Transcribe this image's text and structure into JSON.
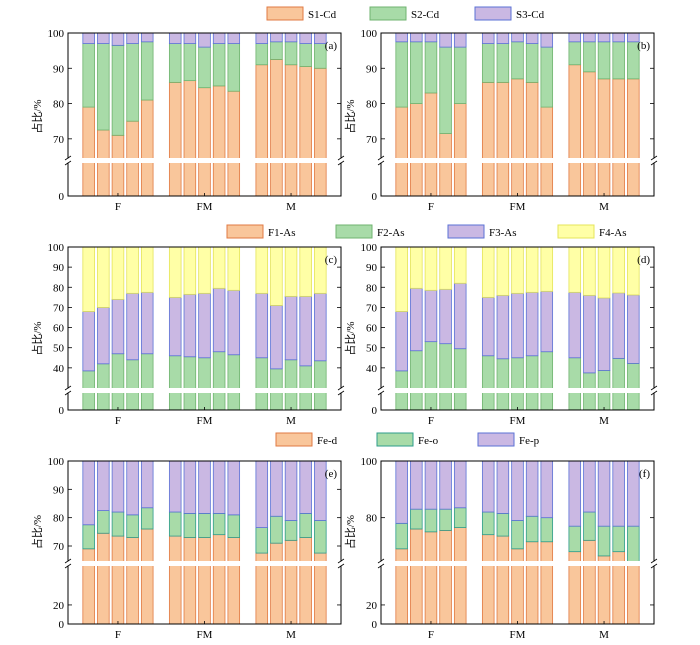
{
  "figure": {
    "ylabel": "占比/%",
    "categories": [
      "F",
      "FM",
      "M"
    ],
    "colors": {
      "peach": "#F9C69B",
      "peach_edge": "#E07A43",
      "green": "#A8DBA8",
      "green_edge": "#6FB36F",
      "purple": "#CAB8E3",
      "purple_edge": "#5B72D6",
      "yellow": "#FFFFA6",
      "yellow_edge": "#E4E45A",
      "teal_edge": "#2E9C8B",
      "break": "#ffffff"
    }
  },
  "legends": [
    {
      "entries": [
        "S1-Cd",
        "S2-Cd",
        "S3-Cd"
      ]
    },
    {
      "entries": [
        "F1-As",
        "F2-As",
        "F3-As",
        "F4-As"
      ]
    },
    {
      "entries": [
        "Fe-d",
        "Fe-o",
        "Fe-p"
      ]
    }
  ],
  "chart_data": [
    {
      "type": "bar",
      "panel": "(a)",
      "stacked": true,
      "group_labels": [
        "F",
        "FM",
        "M"
      ],
      "bars_per_group": 5,
      "ylabel": "占比/%",
      "ylim": [
        0,
        100
      ],
      "yticks": [
        0,
        70,
        80,
        90,
        100
      ],
      "axis_break": [
        5,
        64
      ],
      "series": [
        {
          "name": "S1-Cd",
          "values": [
            79,
            72.5,
            71,
            75,
            81,
            86,
            86.5,
            84.5,
            85,
            83.5,
            91,
            92.5,
            91,
            90.5,
            90
          ]
        },
        {
          "name": "S2-Cd",
          "values": [
            18,
            24.5,
            25.5,
            22,
            16.5,
            11,
            10.5,
            11.5,
            12,
            13.5,
            6,
            5,
            6.5,
            6.5,
            7
          ]
        },
        {
          "name": "S3-Cd",
          "values": [
            3,
            3,
            3.5,
            3,
            2.5,
            3,
            3,
            4,
            3,
            3,
            3,
            2.5,
            2.5,
            3,
            3
          ]
        }
      ]
    },
    {
      "type": "bar",
      "panel": "(b)",
      "stacked": true,
      "group_labels": [
        "F",
        "FM",
        "M"
      ],
      "bars_per_group": 5,
      "ylabel": "占比/%",
      "ylim": [
        0,
        100
      ],
      "yticks": [
        0,
        70,
        80,
        90,
        100
      ],
      "axis_break": [
        5,
        64
      ],
      "series": [
        {
          "name": "S1-Cd",
          "values": [
            79,
            80,
            83,
            71.5,
            80,
            86,
            86,
            87,
            86,
            79,
            91,
            89,
            87,
            87,
            87
          ]
        },
        {
          "name": "S2-Cd",
          "values": [
            18.5,
            17.5,
            14.5,
            24.5,
            16,
            11,
            11,
            10.5,
            11,
            17,
            6.5,
            8.5,
            10.5,
            10.5,
            10.5
          ]
        },
        {
          "name": "S3-Cd",
          "values": [
            2.5,
            2.5,
            2.5,
            4,
            4,
            3,
            3,
            2.5,
            3,
            4,
            2.5,
            2.5,
            2.5,
            2.5,
            2.5
          ]
        }
      ]
    },
    {
      "type": "bar",
      "panel": "(c)",
      "stacked": true,
      "group_labels": [
        "F",
        "FM",
        "M"
      ],
      "bars_per_group": 5,
      "ylabel": "占比/%",
      "ylim": [
        0,
        100
      ],
      "yticks": [
        0,
        40,
        50,
        60,
        70,
        80,
        90,
        100
      ],
      "axis_break": [
        3,
        29
      ],
      "series": [
        {
          "name": "F1-As",
          "values": [
            0.3,
            0.3,
            0.3,
            0.3,
            0.3,
            0.3,
            0.3,
            0.3,
            0.3,
            0.3,
            0.3,
            0.3,
            0.3,
            0.3,
            0.3
          ]
        },
        {
          "name": "F2-As",
          "values": [
            38.2,
            41.7,
            46.7,
            43.7,
            46.7,
            45.7,
            45.2,
            44.7,
            47.7,
            46.2,
            44.7,
            39.2,
            43.7,
            40.7,
            43.2
          ]
        },
        {
          "name": "F3-As",
          "values": [
            29.5,
            28,
            27,
            33,
            30.5,
            29,
            31,
            32,
            31.5,
            32,
            32,
            31.5,
            31.5,
            34.5,
            33.5
          ]
        },
        {
          "name": "F4-As",
          "values": [
            32,
            30,
            26,
            23,
            22.5,
            25,
            23.5,
            23,
            20.5,
            21.5,
            23,
            29,
            24.5,
            24.5,
            23
          ]
        }
      ]
    },
    {
      "type": "bar",
      "panel": "(d)",
      "stacked": true,
      "group_labels": [
        "F",
        "FM",
        "M"
      ],
      "bars_per_group": 5,
      "ylabel": "占比/%",
      "ylim": [
        0,
        100
      ],
      "yticks": [
        0,
        40,
        50,
        60,
        70,
        80,
        90,
        100
      ],
      "axis_break": [
        3,
        29
      ],
      "series": [
        {
          "name": "F1-As",
          "values": [
            0.3,
            0.3,
            0.3,
            0.3,
            0.3,
            0.3,
            0.3,
            0.3,
            0.3,
            0.3,
            0.3,
            0.3,
            0.5,
            0.5,
            0.5
          ]
        },
        {
          "name": "F2-As",
          "values": [
            38.2,
            48.2,
            52.7,
            51.7,
            49.2,
            45.7,
            44.2,
            44.7,
            45.7,
            47.7,
            44.7,
            37.2,
            38.2,
            44.2,
            41.7
          ]
        },
        {
          "name": "F3-As",
          "values": [
            29.5,
            31,
            25.5,
            27,
            32.5,
            29,
            31.5,
            32,
            31.5,
            30,
            32.5,
            38.5,
            36,
            32.5,
            34
          ]
        },
        {
          "name": "F4-As",
          "values": [
            32,
            20.5,
            21.5,
            21,
            18,
            25,
            24,
            23,
            22.5,
            22,
            22.5,
            24,
            25.3,
            22.8,
            23.8
          ]
        }
      ]
    },
    {
      "type": "bar",
      "panel": "(e)",
      "stacked": true,
      "group_labels": [
        "F",
        "FM",
        "M"
      ],
      "bars_per_group": 5,
      "ylabel": "占比/%",
      "ylim": [
        0,
        100
      ],
      "yticks": [
        0,
        20,
        70,
        80,
        90,
        100
      ],
      "axis_break": [
        24,
        64
      ],
      "series": [
        {
          "name": "Fe-d",
          "values": [
            69,
            74.5,
            73.5,
            73,
            76,
            73.5,
            73,
            73,
            74,
            73,
            67.5,
            71,
            72,
            73,
            67.5
          ]
        },
        {
          "name": "Fe-o",
          "values": [
            8.5,
            8,
            8.5,
            8,
            7.5,
            8.5,
            8.5,
            8.5,
            7.5,
            8,
            9,
            9.5,
            7,
            8.5,
            11.5
          ]
        },
        {
          "name": "Fe-p",
          "values": [
            22.5,
            17.5,
            18,
            19,
            16.5,
            18,
            18.5,
            18.5,
            18.5,
            19,
            23.5,
            19.5,
            21,
            18.5,
            21
          ]
        }
      ]
    },
    {
      "type": "bar",
      "panel": "(f)",
      "stacked": true,
      "group_labels": [
        "F",
        "FM",
        "M"
      ],
      "bars_per_group": 5,
      "ylabel": "占比/%",
      "ylim": [
        0,
        100
      ],
      "yticks": [
        0,
        20,
        80,
        100
      ],
      "axis_break": [
        24,
        64
      ],
      "series": [
        {
          "name": "Fe-d",
          "values": [
            69,
            76,
            75,
            75.5,
            76.5,
            74,
            73.5,
            69,
            71.5,
            71.5,
            68,
            72,
            66.5,
            68,
            64.5
          ]
        },
        {
          "name": "Fe-o",
          "values": [
            9,
            7,
            8,
            7.5,
            7,
            8,
            8,
            10,
            9,
            8.5,
            9,
            10,
            10.5,
            9,
            12.5
          ]
        },
        {
          "name": "Fe-p",
          "values": [
            22,
            17,
            17,
            17,
            16.5,
            18,
            18.5,
            21,
            19.5,
            20,
            23,
            18,
            23,
            23,
            23
          ]
        }
      ]
    }
  ]
}
